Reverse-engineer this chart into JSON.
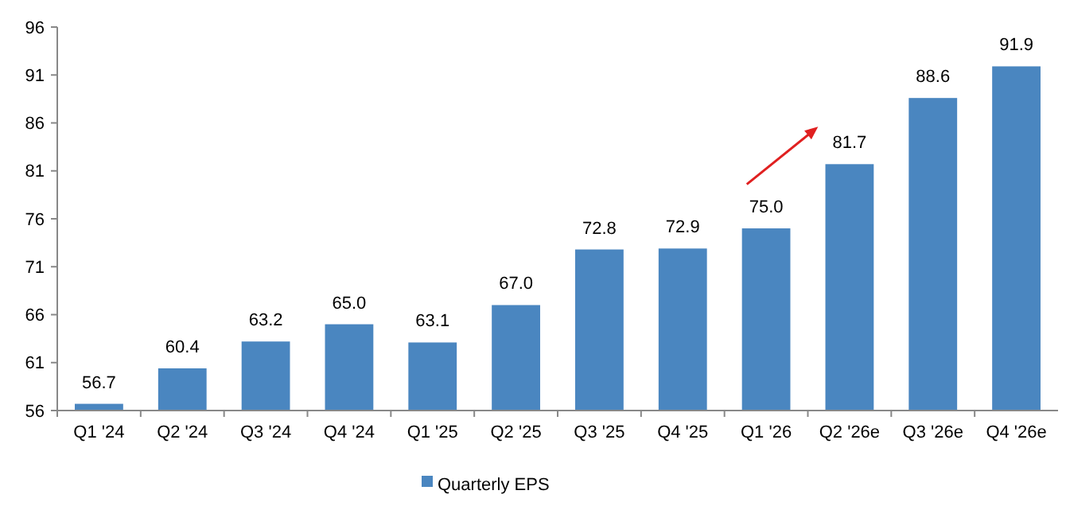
{
  "chart_data": {
    "type": "bar",
    "categories": [
      "Q1 '24",
      "Q2 '24",
      "Q3 '24",
      "Q4 '24",
      "Q1 '25",
      "Q2 '25",
      "Q3 '25",
      "Q4 '25",
      "Q1 '26",
      "Q2 '26e",
      "Q3 '26e",
      "Q4 '26e"
    ],
    "series": [
      {
        "name": "Quarterly EPS",
        "color": "#4a86c0",
        "values": [
          56.7,
          60.4,
          63.2,
          65.0,
          63.1,
          67.0,
          72.8,
          72.9,
          75.0,
          81.7,
          88.6,
          91.9
        ]
      }
    ],
    "value_labels": [
      "56.7",
      "60.4",
      "63.2",
      "65.0",
      "63.1",
      "67.0",
      "72.8",
      "72.9",
      "75.0",
      "81.7",
      "88.6",
      "91.9"
    ],
    "ylim": [
      56,
      96
    ],
    "yticks": [
      56,
      61,
      66,
      71,
      76,
      81,
      86,
      91,
      96
    ],
    "grid": false,
    "legend": "bottom"
  }
}
